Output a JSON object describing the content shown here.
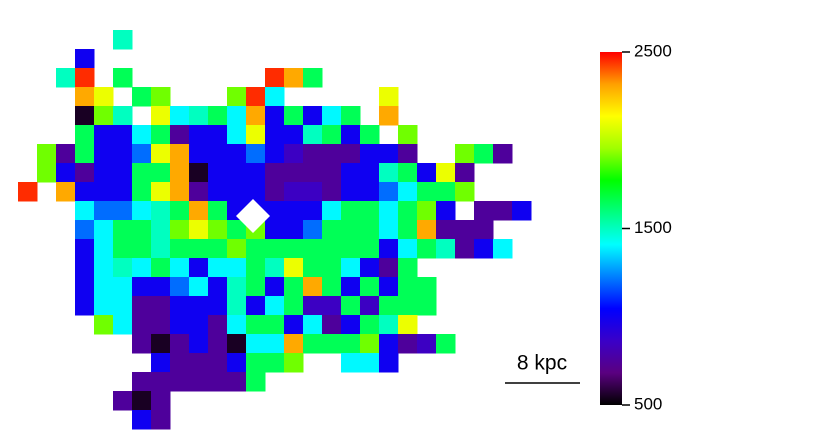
{
  "chart_data": {
    "type": "heatmap",
    "annotation": "8 kpc",
    "zlim": [
      500,
      2500
    ],
    "zticks": [
      500,
      1500,
      2500
    ],
    "colormap": [
      "#000000",
      "#5a0080",
      "#3a00c8",
      "#0000ff",
      "#0080ff",
      "#00ffff",
      "#00ff80",
      "#00ff00",
      "#a0ff00",
      "#ffff00",
      "#ffa000",
      "#ff0000"
    ],
    "values": [
      [
        null,
        null,
        null,
        null,
        null,
        1500,
        null,
        null,
        null,
        null,
        null,
        null,
        null,
        null,
        null,
        null,
        null,
        null,
        null,
        null,
        null,
        null,
        null,
        null,
        null,
        null,
        null
      ],
      [
        null,
        null,
        null,
        1000,
        null,
        null,
        null,
        null,
        null,
        null,
        null,
        null,
        null,
        null,
        null,
        null,
        null,
        null,
        null,
        null,
        null,
        null,
        null,
        null,
        null,
        null,
        null
      ],
      [
        null,
        null,
        1500,
        2450,
        null,
        1650,
        null,
        null,
        null,
        null,
        null,
        null,
        null,
        2450,
        2300,
        1650,
        null,
        null,
        null,
        null,
        null,
        null,
        null,
        null,
        null,
        null,
        null
      ],
      [
        null,
        null,
        null,
        2300,
        2100,
        null,
        1650,
        1900,
        null,
        null,
        null,
        1900,
        2450,
        1400,
        null,
        null,
        null,
        null,
        null,
        2100,
        null,
        null,
        null,
        null,
        null,
        null,
        null
      ],
      [
        null,
        null,
        null,
        550,
        1900,
        1500,
        null,
        2100,
        1400,
        1500,
        1650,
        1400,
        2300,
        1000,
        1650,
        1000,
        1400,
        1650,
        null,
        2300,
        null,
        null,
        null,
        null,
        null,
        null,
        null
      ],
      [
        null,
        null,
        null,
        1650,
        1000,
        1000,
        1400,
        1650,
        750,
        1000,
        1000,
        1400,
        2100,
        1000,
        1000,
        1500,
        1650,
        1000,
        1650,
        null,
        1900,
        null,
        null,
        null,
        null,
        null,
        null
      ],
      [
        null,
        1900,
        750,
        1650,
        1000,
        1000,
        1200,
        2100,
        2300,
        1000,
        1000,
        1000,
        1200,
        1000,
        850,
        750,
        750,
        750,
        1000,
        1000,
        750,
        null,
        null,
        1900,
        1650,
        750,
        null
      ],
      [
        null,
        1900,
        1000,
        750,
        1000,
        1000,
        1650,
        1650,
        2300,
        550,
        1000,
        1000,
        1000,
        750,
        750,
        750,
        750,
        1000,
        1000,
        1500,
        1650,
        1000,
        2100,
        750,
        null,
        null,
        null
      ],
      [
        2450,
        null,
        2300,
        1000,
        1000,
        1000,
        1650,
        2100,
        2300,
        750,
        1000,
        1000,
        1000,
        750,
        850,
        850,
        750,
        1000,
        1000,
        1200,
        1400,
        1650,
        1650,
        1900,
        null,
        null,
        null
      ],
      [
        null,
        null,
        null,
        1400,
        1200,
        1200,
        1400,
        1500,
        1650,
        2300,
        1650,
        1000,
        1000,
        1000,
        1000,
        1000,
        1400,
        1650,
        1650,
        1400,
        1650,
        1900,
        1000,
        null,
        750,
        750,
        1000
      ],
      [
        null,
        null,
        null,
        1200,
        1400,
        1650,
        1650,
        1500,
        1900,
        2100,
        1900,
        1650,
        1900,
        1000,
        1000,
        1200,
        1650,
        1650,
        1650,
        1400,
        1650,
        2300,
        750,
        750,
        750,
        null,
        null
      ],
      [
        null,
        null,
        null,
        1000,
        1400,
        1650,
        1650,
        1500,
        1650,
        1650,
        1650,
        1900,
        1650,
        1650,
        1650,
        1650,
        1650,
        1650,
        1650,
        1000,
        1400,
        1650,
        1500,
        750,
        1000,
        1400,
        null
      ],
      [
        null,
        null,
        null,
        1000,
        1400,
        1500,
        1400,
        1650,
        1400,
        1000,
        1400,
        1400,
        1650,
        1500,
        2100,
        1650,
        1650,
        1400,
        1000,
        750,
        1650,
        null,
        null,
        null,
        null,
        null,
        null
      ],
      [
        null,
        null,
        null,
        1000,
        1400,
        1400,
        1000,
        1000,
        1200,
        1400,
        1000,
        1500,
        1650,
        1000,
        1650,
        2300,
        1650,
        1000,
        1650,
        1000,
        1650,
        1650,
        null,
        null,
        null,
        null,
        null
      ],
      [
        null,
        null,
        null,
        1000,
        1400,
        1400,
        750,
        750,
        1000,
        1000,
        1000,
        1500,
        1000,
        1400,
        1650,
        850,
        850,
        1650,
        850,
        1650,
        1650,
        1650,
        null,
        null,
        null,
        null,
        null
      ],
      [
        null,
        null,
        null,
        null,
        1900,
        1400,
        750,
        750,
        1000,
        1000,
        750,
        1400,
        1650,
        1650,
        1000,
        1400,
        750,
        1000,
        1650,
        1500,
        2100,
        null,
        null,
        null,
        null,
        null,
        null
      ],
      [
        null,
        null,
        null,
        null,
        null,
        null,
        750,
        550,
        750,
        1000,
        750,
        550,
        1400,
        1400,
        2300,
        1650,
        1650,
        1650,
        1900,
        1000,
        750,
        850,
        1650,
        null,
        null,
        null,
        null
      ],
      [
        null,
        null,
        null,
        null,
        null,
        null,
        null,
        1000,
        750,
        750,
        750,
        1000,
        1650,
        1650,
        1900,
        null,
        null,
        1400,
        1400,
        1000,
        null,
        null,
        null,
        null,
        null,
        null,
        null
      ],
      [
        null,
        null,
        null,
        null,
        null,
        null,
        750,
        750,
        750,
        750,
        750,
        750,
        1650,
        null,
        null,
        null,
        null,
        null,
        null,
        null,
        null,
        null,
        null,
        null,
        null,
        null,
        null
      ],
      [
        null,
        null,
        null,
        null,
        null,
        750,
        550,
        750,
        null,
        null,
        null,
        null,
        null,
        null,
        null,
        null,
        null,
        null,
        null,
        null,
        null,
        null,
        null,
        null,
        null,
        null,
        null
      ],
      [
        null,
        null,
        null,
        null,
        null,
        null,
        1000,
        750,
        null,
        null,
        null,
        null,
        null,
        null,
        null,
        null,
        null,
        null,
        null,
        null,
        null,
        null,
        null,
        null,
        null,
        null,
        null
      ]
    ]
  }
}
